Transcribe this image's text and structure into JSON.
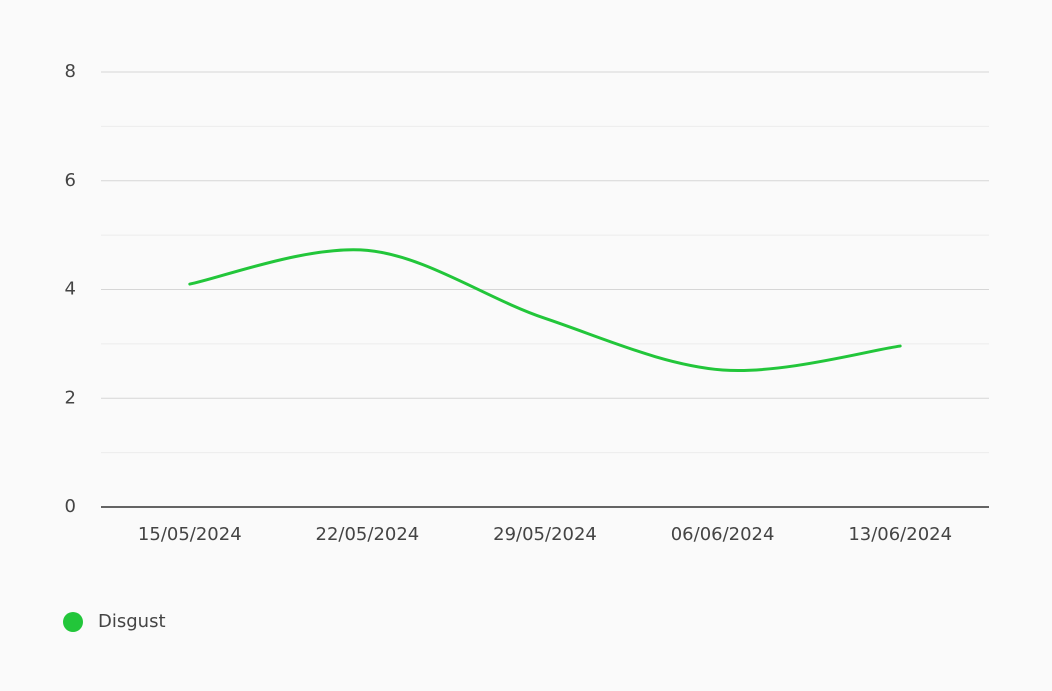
{
  "chart_data": {
    "type": "line",
    "categories": [
      "15/05/2024",
      "22/05/2024",
      "29/05/2024",
      "06/06/2024",
      "13/06/2024"
    ],
    "series": [
      {
        "name": "Disgust",
        "color": "#22c63a",
        "values": [
          4.1,
          4.72,
          3.47,
          2.52,
          2.96
        ]
      }
    ],
    "ylim": [
      0,
      8
    ],
    "yticks": [
      0,
      2,
      4,
      6,
      8
    ],
    "minor_yticks": [
      1,
      3,
      5,
      7
    ],
    "grid": true,
    "smooth": true,
    "legend": "bottom-left"
  }
}
